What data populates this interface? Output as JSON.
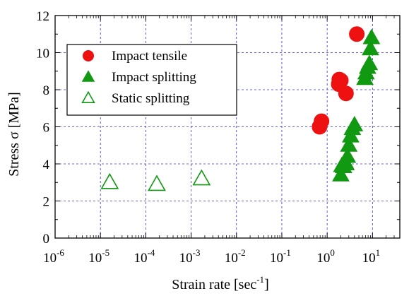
{
  "chart_data": {
    "type": "scatter",
    "xlabel": "Strain rate [sec",
    "xlabel_sup": "-1",
    "xlabel_end": "]",
    "ylabel": "Stress σ [MPa]",
    "x_scale": "log",
    "xlim": [
      1e-06,
      40
    ],
    "ylim": [
      0,
      12
    ],
    "grid": true,
    "legend_position": "top-left",
    "y_ticks": [
      0,
      2,
      4,
      6,
      8,
      10,
      12
    ],
    "x_tick_exponents": [
      -6,
      -5,
      -4,
      -3,
      -2,
      -1,
      0,
      1
    ],
    "x_tick_base": "10",
    "colors": {
      "red": "#ee1111",
      "green": "#119911",
      "grid": "#3333cc"
    },
    "series": [
      {
        "name": "Impact tensile",
        "marker": "circle",
        "filled": true,
        "color": "#ee1111",
        "points": [
          [
            0.68,
            6.0
          ],
          [
            0.75,
            6.3
          ],
          [
            1.8,
            8.3
          ],
          [
            1.85,
            8.55
          ],
          [
            2.0,
            8.5
          ],
          [
            2.6,
            7.8
          ],
          [
            4.5,
            11.0
          ]
        ]
      },
      {
        "name": "Impact splitting",
        "marker": "triangle",
        "filled": true,
        "color": "#119911",
        "points": [
          [
            2.0,
            3.4
          ],
          [
            2.1,
            3.9
          ],
          [
            2.3,
            3.85
          ],
          [
            2.5,
            4.1
          ],
          [
            2.6,
            4.0
          ],
          [
            2.8,
            4.4
          ],
          [
            3.0,
            5.0
          ],
          [
            3.3,
            5.5
          ],
          [
            3.6,
            5.9
          ],
          [
            4.0,
            6.1
          ],
          [
            6.8,
            8.6
          ],
          [
            7.2,
            8.9
          ],
          [
            7.8,
            9.2
          ],
          [
            8.5,
            9.4
          ],
          [
            9.0,
            10.2
          ],
          [
            9.5,
            10.8
          ]
        ]
      },
      {
        "name": "Static splitting",
        "marker": "triangle",
        "filled": false,
        "color": "#119911",
        "points": [
          [
            1.6e-05,
            3.0
          ],
          [
            0.000175,
            2.9
          ],
          [
            0.0017,
            3.2
          ]
        ]
      }
    ]
  }
}
